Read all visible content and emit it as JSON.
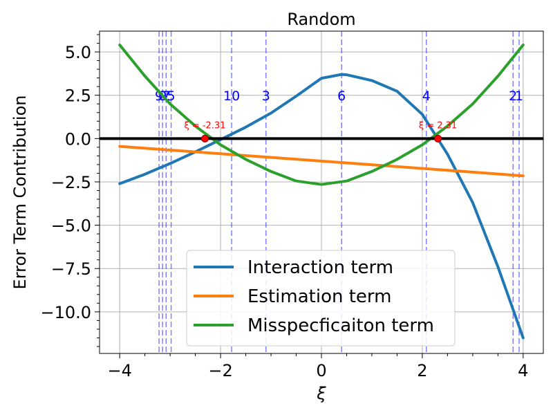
{
  "chart_data": {
    "type": "line",
    "title": "Random",
    "xlabel": "ξ",
    "ylabel": "Error Term Contribution",
    "xlim": [
      -4.4,
      4.4
    ],
    "ylim": [
      -12.4,
      6.2
    ],
    "xticks": [
      -4,
      -2,
      0,
      2,
      4
    ],
    "xtick_labels": [
      "−4",
      "−2",
      "0",
      "2",
      "4"
    ],
    "yticks": [
      5.0,
      2.5,
      0.0,
      -2.5,
      -5.0,
      -7.5,
      -10.0
    ],
    "ytick_labels": [
      "5.0",
      "2.5",
      "0.0",
      "−2.5",
      "−5.0",
      "−7.5",
      "−10.0"
    ],
    "grid": true,
    "legend_position": "lower-center",
    "series": [
      {
        "name": "Interaction term",
        "color": "#1f77b4",
        "x": [
          -4,
          -3.5,
          -3,
          -2.5,
          -2,
          -1.5,
          -1,
          -0.5,
          0,
          0.4,
          0.5,
          1,
          1.5,
          2,
          2.5,
          3,
          3.5,
          4
        ],
        "y": [
          -2.6,
          -2.06,
          -1.44,
          -0.77,
          -0.06,
          0.66,
          1.47,
          2.45,
          3.48,
          3.7,
          3.68,
          3.35,
          2.73,
          1.4,
          -0.9,
          -3.7,
          -7.4,
          -11.5
        ]
      },
      {
        "name": "Estimation term",
        "color": "#ff7f0e",
        "x": [
          -4,
          4
        ],
        "y": [
          -0.45,
          -2.15
        ]
      },
      {
        "name": "Misspecficaiton term",
        "color": "#2ca02c",
        "x": [
          -4,
          -3.5,
          -3,
          -2.5,
          -2,
          -1.5,
          -1,
          -0.5,
          0,
          0.5,
          1,
          1.5,
          2,
          2.5,
          3,
          3.5,
          4
        ],
        "y": [
          5.4,
          3.6,
          2.0,
          0.72,
          -0.36,
          -1.2,
          -1.9,
          -2.45,
          -2.65,
          -2.45,
          -1.9,
          -1.2,
          -0.36,
          0.72,
          2.0,
          3.6,
          5.4
        ]
      }
    ],
    "reference_lines": [
      {
        "type": "horizontal",
        "y": 0,
        "color": "#000000"
      }
    ],
    "vertical_markers": [
      {
        "x": -3.22,
        "label": "9"
      },
      {
        "x": -3.15,
        "label": "0"
      },
      {
        "x": -3.08,
        "label": "7"
      },
      {
        "x": -2.98,
        "label": "5"
      },
      {
        "x": -1.78,
        "label": "10"
      },
      {
        "x": -1.1,
        "label": "3"
      },
      {
        "x": 0.4,
        "label": "6"
      },
      {
        "x": 2.08,
        "label": "4"
      },
      {
        "x": 3.8,
        "label": "2"
      },
      {
        "x": 3.92,
        "label": "1"
      }
    ],
    "vertical_marker_color": "#0000ff",
    "roots": [
      {
        "x": -2.31,
        "y": 0,
        "label": "ξ = -2.31"
      },
      {
        "x": 2.31,
        "y": 0,
        "label": "ξ = 2.31"
      }
    ],
    "root_color": "#ff0000"
  }
}
